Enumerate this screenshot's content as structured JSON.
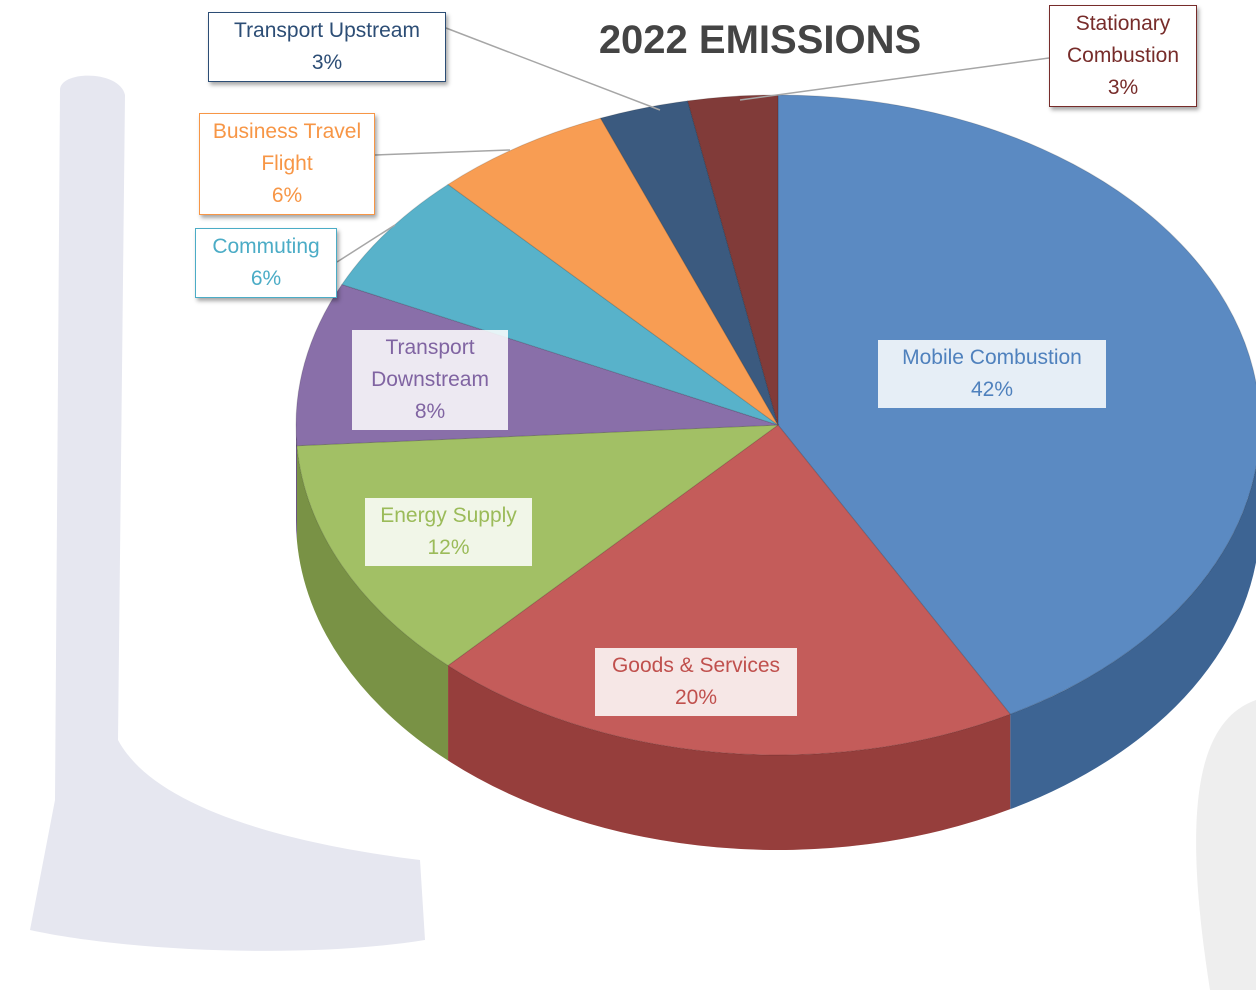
{
  "chart_data": {
    "type": "pie",
    "title": "2022 EMISSIONS",
    "categories": [
      "Mobile Combustion",
      "Goods & Services",
      "Energy Supply",
      "Transport Downstream",
      "Commuting",
      "Business Travel Flight",
      "Transport Upstream",
      "Stationary Combustion"
    ],
    "values": [
      42,
      20,
      12,
      8,
      6,
      6,
      3,
      3
    ],
    "value_labels": [
      "42%",
      "20%",
      "12%",
      "8%",
      "6%",
      "6%",
      "3%",
      "3%"
    ],
    "colors": [
      "#4f81bd",
      "#c0504d",
      "#9bbb59",
      "#8064a2",
      "#4bacc6",
      "#f79646",
      "#2c4d75",
      "#772c2a"
    ]
  }
}
